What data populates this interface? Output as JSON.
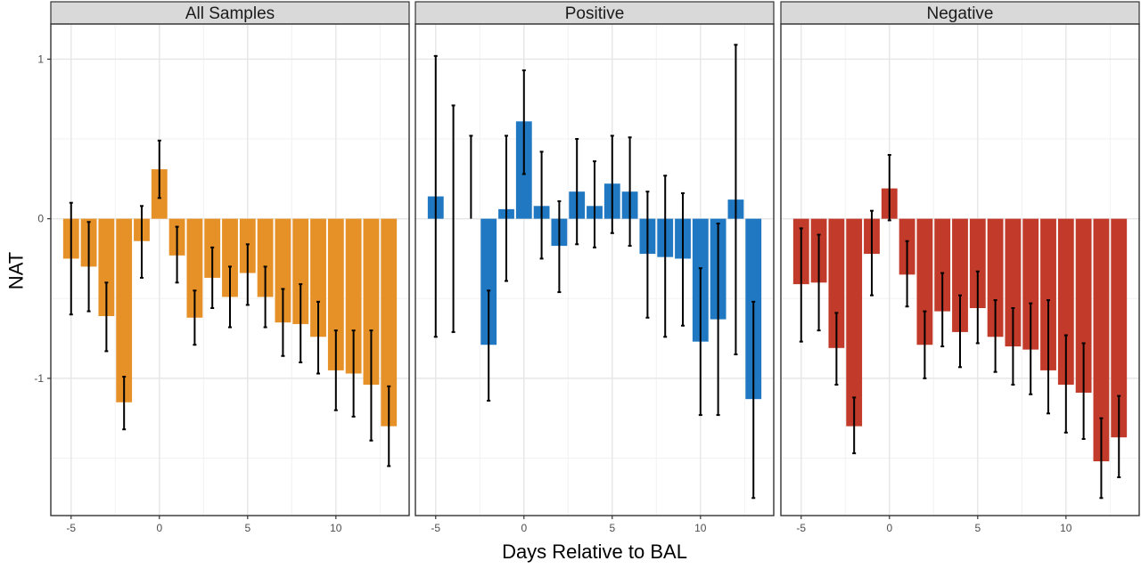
{
  "chart_data": {
    "type": "bar",
    "xlabel": "Days Relative to BAL",
    "ylabel": "NAT",
    "x": [
      -5,
      -4,
      -3,
      -2,
      -1,
      0,
      1,
      2,
      3,
      4,
      5,
      6,
      7,
      8,
      9,
      10,
      11,
      12,
      13
    ],
    "x_ticks": [
      -5,
      0,
      5,
      10
    ],
    "y_ticks": [
      -1,
      0,
      1
    ],
    "xlim": [
      -6.15,
      14.15
    ],
    "ylim": [
      -1.86,
      1.22
    ],
    "grid": true,
    "panels": [
      {
        "title": "All Samples",
        "color": "#E69028",
        "values": [
          -0.25,
          -0.3,
          -0.61,
          -1.15,
          -0.14,
          0.31,
          -0.23,
          -0.62,
          -0.37,
          -0.49,
          -0.34,
          -0.49,
          -0.65,
          -0.66,
          -0.74,
          -0.95,
          -0.97,
          -1.04,
          -1.3
        ],
        "err_low": [
          -0.6,
          -0.58,
          -0.83,
          -1.32,
          -0.37,
          0.13,
          -0.4,
          -0.79,
          -0.56,
          -0.68,
          -0.54,
          -0.68,
          -0.86,
          -0.9,
          -0.97,
          -1.2,
          -1.24,
          -1.39,
          -1.55
        ],
        "err_high": [
          0.1,
          -0.02,
          -0.4,
          -0.99,
          0.08,
          0.49,
          -0.05,
          -0.45,
          -0.18,
          -0.3,
          -0.16,
          -0.3,
          -0.44,
          -0.41,
          -0.52,
          -0.7,
          -0.7,
          -0.7,
          -1.05
        ]
      },
      {
        "title": "Positive",
        "color": "#1F78C1",
        "values": [
          0.14,
          null,
          null,
          -0.79,
          0.06,
          0.61,
          0.08,
          -0.17,
          0.17,
          0.08,
          0.22,
          0.17,
          -0.22,
          -0.24,
          -0.25,
          -0.77,
          -0.63,
          0.12,
          -1.13
        ],
        "err_low": [
          -0.74,
          -0.71,
          null,
          -1.14,
          -0.39,
          0.28,
          -0.25,
          -0.46,
          -0.16,
          -0.18,
          -0.09,
          -0.17,
          -0.62,
          -0.74,
          -0.67,
          -1.23,
          -1.23,
          -0.85,
          -1.75
        ],
        "err_high": [
          1.02,
          0.71,
          0.52,
          -0.45,
          0.52,
          0.93,
          0.42,
          0.11,
          0.5,
          0.36,
          0.52,
          0.51,
          0.17,
          0.27,
          0.16,
          -0.31,
          -0.03,
          1.09,
          -0.52
        ]
      },
      {
        "title": "Negative",
        "color": "#C23B2A",
        "values": [
          -0.41,
          -0.4,
          -0.81,
          -1.3,
          -0.22,
          0.19,
          -0.35,
          -0.79,
          -0.58,
          -0.71,
          -0.56,
          -0.74,
          -0.8,
          -0.82,
          -0.95,
          -1.04,
          -1.09,
          -1.52,
          -1.37
        ],
        "err_low": [
          -0.77,
          -0.7,
          -1.04,
          -1.47,
          -0.48,
          -0.01,
          -0.55,
          -1.0,
          -0.8,
          -0.93,
          -0.78,
          -0.96,
          -1.04,
          -1.1,
          -1.22,
          -1.34,
          -1.38,
          -1.75,
          -1.62
        ],
        "err_high": [
          -0.06,
          -0.1,
          -0.59,
          -1.12,
          0.05,
          0.4,
          -0.14,
          -0.58,
          -0.34,
          -0.48,
          -0.33,
          -0.51,
          -0.56,
          -0.53,
          -0.51,
          -0.73,
          -0.78,
          -1.25,
          -1.11
        ]
      }
    ]
  }
}
